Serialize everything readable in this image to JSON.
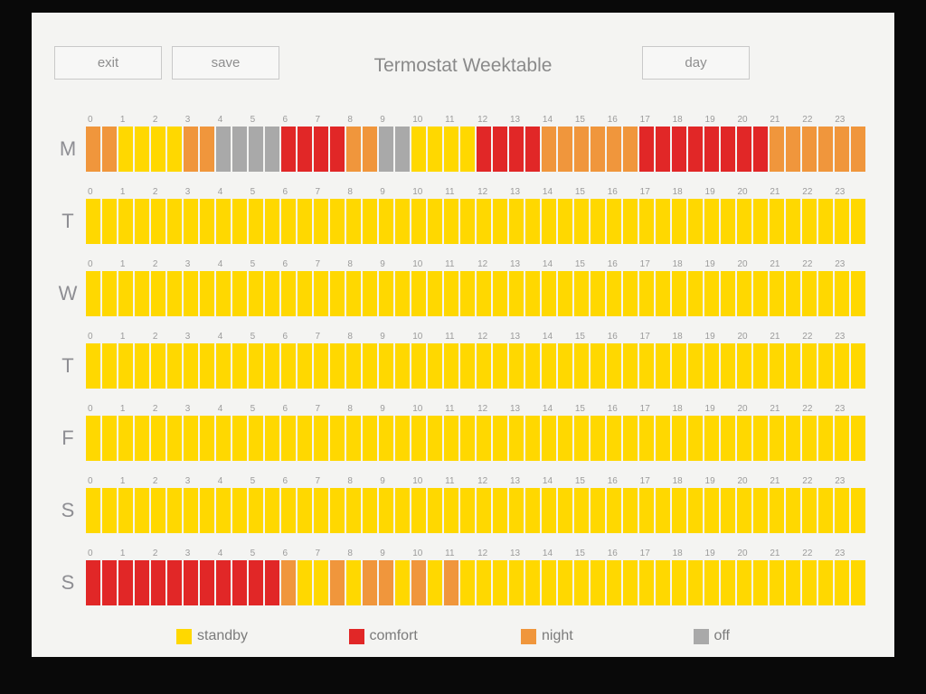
{
  "header": {
    "title": "Termostat Weektable",
    "exit_label": "exit",
    "save_label": "save",
    "day_label": "day"
  },
  "hours": [
    "0",
    "1",
    "2",
    "3",
    "4",
    "5",
    "6",
    "7",
    "8",
    "9",
    "10",
    "11",
    "12",
    "13",
    "14",
    "15",
    "16",
    "17",
    "18",
    "19",
    "20",
    "21",
    "22",
    "23"
  ],
  "colors": {
    "s": "#FFD800",
    "c": "#E12727",
    "n": "#F0963C",
    "o": "#A9A9A9"
  },
  "legend": [
    {
      "label": "standby",
      "key": "s"
    },
    {
      "label": "comfort",
      "key": "c"
    },
    {
      "label": "night",
      "key": "n"
    },
    {
      "label": "off",
      "key": "o"
    }
  ],
  "days": [
    {
      "label": "M",
      "segments": "nnssssnnooooccccnnoossssccccnnnnnnccccccccnnnnnn"
    },
    {
      "label": "T",
      "segments": "ssssssssssssssssssssssssssssssssssssssssssssssss"
    },
    {
      "label": "W",
      "segments": "ssssssssssssssssssssssssssssssssssssssssssssssss"
    },
    {
      "label": "T",
      "segments": "ssssssssssssssssssssssssssssssssssssssssssssssss"
    },
    {
      "label": "F",
      "segments": "ssssssssssssssssssssssssssssssssssssssssssssssss"
    },
    {
      "label": "S",
      "segments": "ssssssssssssssssssssssssssssssssssssssssssssssss"
    },
    {
      "label": "S",
      "segments": "ccccccccccccnssnsnnsnsnsssssssssssssssssssssssss"
    }
  ]
}
